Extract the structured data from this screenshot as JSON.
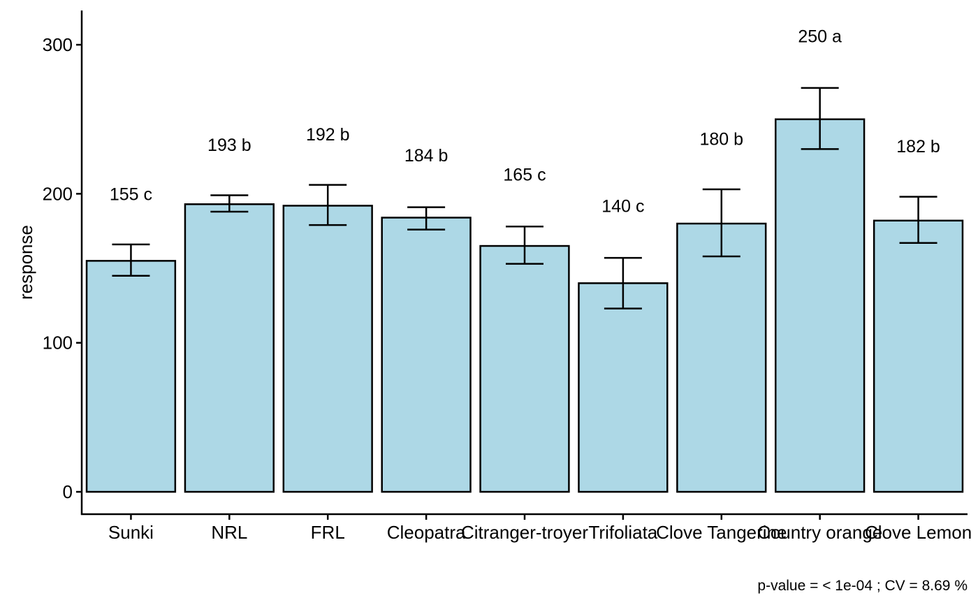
{
  "chart_data": {
    "type": "bar",
    "title": "",
    "xlabel": "",
    "ylabel": "response",
    "ylim": [
      -15,
      323
    ],
    "yticks": [
      0,
      100,
      200,
      300
    ],
    "categories": [
      "Sunki",
      "NRL",
      "FRL",
      "Cleopatra",
      "Citranger-troyer",
      "Trifoliata",
      "Clove Tangerine",
      "Country orange",
      "Clove Lemon"
    ],
    "values": [
      155,
      193,
      192,
      184,
      165,
      140,
      180,
      250,
      182
    ],
    "error_low": [
      145,
      188,
      179,
      176,
      153,
      123,
      158,
      230,
      167
    ],
    "error_high": [
      166,
      199,
      206,
      191,
      178,
      157,
      203,
      271,
      198
    ],
    "data_labels": [
      "155 c",
      "193 b",
      "192 b",
      "184 b",
      "165 c",
      "140 c",
      "180 b",
      "250 a",
      "182 b"
    ],
    "label_positions": [
      200,
      233,
      240,
      226,
      213,
      192,
      237,
      306,
      232
    ],
    "bar_fill": "#add8e6",
    "bar_stroke": "#000000",
    "grid": false,
    "legend": "none",
    "caption": "p-value =  < 1e-04 ; CV =  8.69 %"
  }
}
